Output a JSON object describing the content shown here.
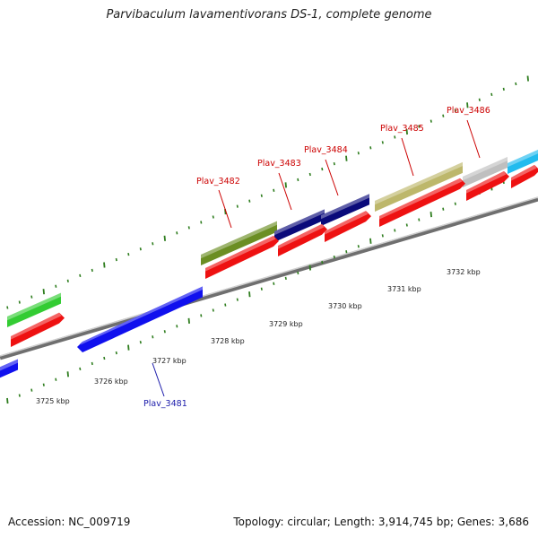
{
  "title": "Parvibaculum lavamentivorans DS-1, complete genome",
  "footer": {
    "accession": "Accession: NC_009719",
    "summary": "Topology: circular; Length: 3,914,745 bp; Genes: 3,686"
  },
  "colors": {
    "backbone": "#8a8a8a",
    "tick": "#2e7d1e",
    "label_red": "#cc0000",
    "label_blue": "#1a1aaa",
    "cds_red": "#ee1111"
  },
  "scale_labels": [
    "3725 kbp",
    "3726 kbp",
    "3727 kbp",
    "3728 kbp",
    "3729 kbp",
    "3730 kbp",
    "3731 kbp",
    "3732 kbp"
  ],
  "gene_labels": [
    {
      "text": "Plav_3481",
      "color": "label_blue"
    },
    {
      "text": "Plav_3482",
      "color": "label_red"
    },
    {
      "text": "Plav_3483",
      "color": "label_red"
    },
    {
      "text": "Plav_3484",
      "color": "label_red"
    },
    {
      "text": "Plav_3485",
      "color": "label_red"
    },
    {
      "text": "Plav_3486",
      "color": "label_red"
    }
  ]
}
